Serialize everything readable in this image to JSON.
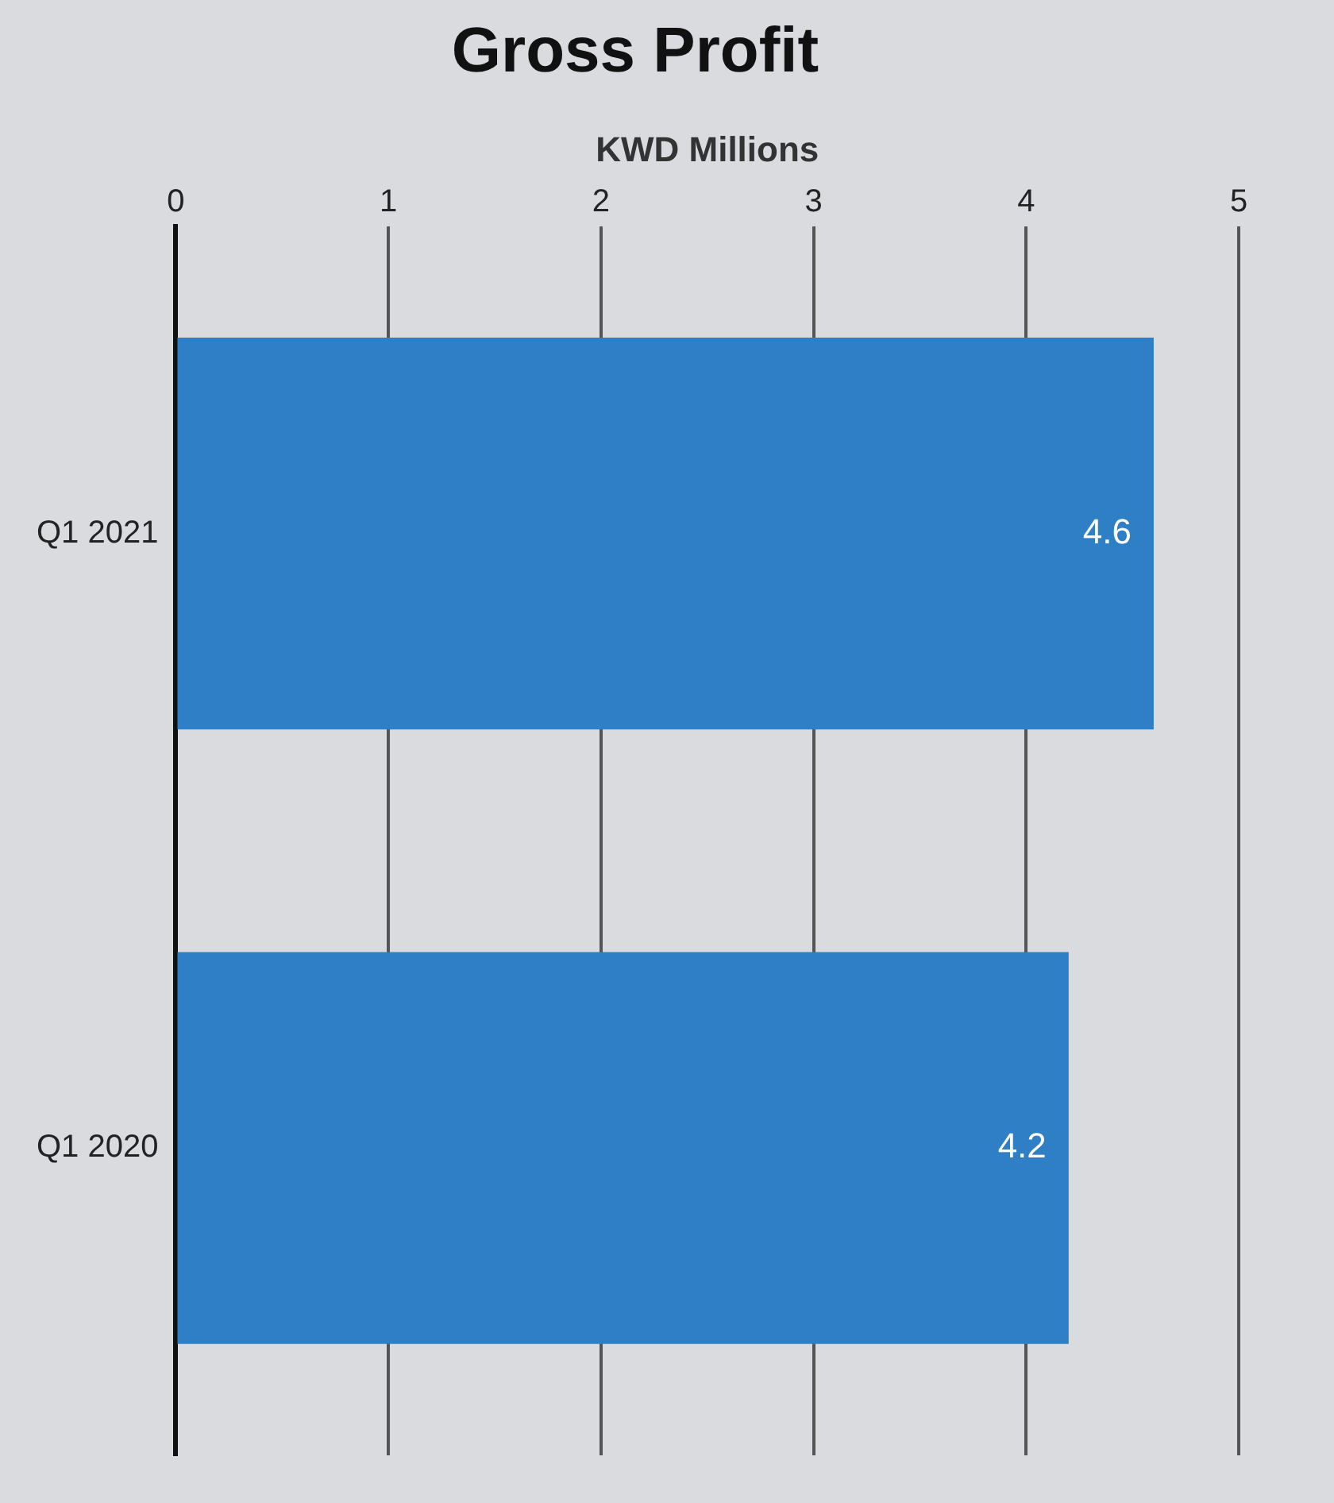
{
  "chart_data": {
    "type": "bar",
    "orientation": "horizontal",
    "title": "Gross Profit",
    "xlabel": "KWD Millions",
    "categories": [
      "Q1 2021",
      "Q1 2020"
    ],
    "values": [
      4.6,
      4.2
    ],
    "color": "#2f7fc6",
    "xlim": [
      0,
      5
    ],
    "xticks": [
      0,
      1,
      2,
      3,
      4,
      5
    ],
    "grid": true,
    "data_labels": true
  }
}
